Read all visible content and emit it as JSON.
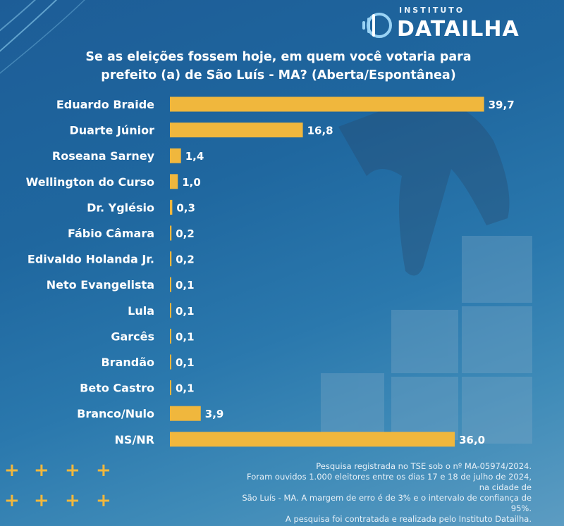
{
  "logo": {
    "prefix": "INSTITUTO",
    "name": "DATAILHA"
  },
  "title_line1": "Se as eleições fossem hoje, em quem você votaria para",
  "title_line2": "prefeito (a) de São Luís - MA? (Aberta/Espontânea)",
  "colors": {
    "bar": "#f0b73d",
    "accent": "#f0b73d",
    "background": "#1f669f"
  },
  "chart_data": {
    "type": "bar",
    "orientation": "horizontal",
    "title": "Se as eleições fossem hoje, em quem você votaria para prefeito (a) de São Luís - MA? (Aberta/Espontânea)",
    "categories": [
      "Eduardo Braide",
      "Duarte Júnior",
      "Roseana Sarney",
      "Wellington do Curso",
      "Dr. Yglésio",
      "Fábio Câmara",
      "Edivaldo Holanda Jr.",
      "Neto Evangelista",
      "Lula",
      "Garcês",
      "Brandão",
      "Beto Castro",
      "Branco/Nulo",
      "NS/NR"
    ],
    "values": [
      39.7,
      16.8,
      1.4,
      1.0,
      0.3,
      0.2,
      0.2,
      0.1,
      0.1,
      0.1,
      0.1,
      0.1,
      3.9,
      36.0
    ],
    "value_labels": [
      "39,7",
      "16,8",
      "1,4",
      "1,0",
      "0,3",
      "0,2",
      "0,2",
      "0,1",
      "0,1",
      "0,1",
      "0,1",
      "0,1",
      "3,9",
      "36,0"
    ],
    "xlim": [
      0,
      40
    ],
    "xlabel": "",
    "ylabel": "",
    "grid": false
  },
  "footer": {
    "line1": "Pesquisa registrada no TSE sob o nº MA-05974/2024.",
    "line2": "Foram ouvidos 1.000 eleitores entre os dias 17 e 18 de julho de 2024, na cidade de",
    "line3": "São Luís - MA. A margem de erro é de 3% e o intervalo de confiança de 95%.",
    "line4": "A pesquisa foi contratada e realizada pelo Instituto Datailha."
  }
}
